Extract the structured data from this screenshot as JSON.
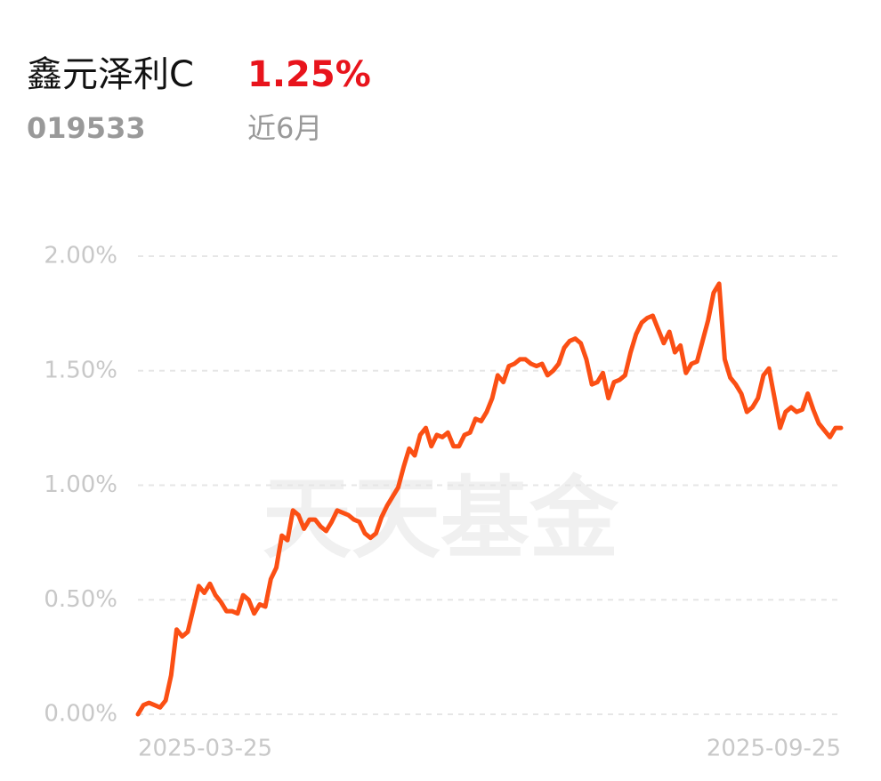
{
  "header": {
    "name": "鑫元泽利C",
    "return": "1.25%",
    "code": "019533",
    "period": "近6月"
  },
  "chart_data": {
    "type": "line",
    "watermark": "天天基金",
    "color": "#fb4f14",
    "grid": true,
    "ylim": [
      0,
      2
    ],
    "yticks": [
      {
        "value": 0,
        "label": "0.00%"
      },
      {
        "value": 0.5,
        "label": "0.50%"
      },
      {
        "value": 1,
        "label": "1.00%"
      },
      {
        "value": 1.5,
        "label": "1.50%"
      },
      {
        "value": 2,
        "label": "2.00%"
      }
    ],
    "categories": [
      "2025-03-25",
      null,
      null,
      null,
      null,
      null,
      null,
      null,
      null,
      null,
      null,
      null,
      null,
      null,
      null,
      null,
      null,
      null,
      null,
      null,
      null,
      null,
      null,
      null,
      null,
      null,
      null,
      null,
      null,
      null,
      null,
      null,
      null,
      null,
      null,
      null,
      null,
      null,
      null,
      null,
      null,
      null,
      null,
      null,
      null,
      null,
      null,
      null,
      null,
      null,
      null,
      null,
      null,
      null,
      null,
      null,
      null,
      null,
      null,
      null,
      null,
      null,
      null,
      null,
      null,
      null,
      null,
      null,
      null,
      null,
      null,
      null,
      null,
      null,
      null,
      null,
      null,
      null,
      null,
      null,
      null,
      null,
      null,
      null,
      null,
      null,
      null,
      null,
      null,
      null,
      null,
      null,
      null,
      null,
      null,
      null,
      null,
      null,
      null,
      null,
      null,
      null,
      null,
      null,
      null,
      null,
      null,
      null,
      null,
      null,
      null,
      null,
      null,
      null,
      null,
      null,
      null,
      null,
      null,
      null,
      null,
      null,
      null,
      null,
      null,
      null,
      null,
      "2025-09-25"
    ],
    "values": [
      0,
      0.04,
      0.05,
      0.04,
      0.03,
      0.06,
      0.17,
      0.37,
      0.34,
      0.36,
      0.46,
      0.56,
      0.53,
      0.57,
      0.52,
      0.49,
      0.45,
      0.45,
      0.44,
      0.52,
      0.5,
      0.44,
      0.48,
      0.47,
      0.59,
      0.64,
      0.78,
      0.76,
      0.89,
      0.87,
      0.81,
      0.85,
      0.85,
      0.82,
      0.8,
      0.84,
      0.89,
      0.88,
      0.87,
      0.85,
      0.84,
      0.79,
      0.77,
      0.79,
      0.86,
      0.91,
      0.95,
      0.99,
      1.08,
      1.16,
      1.13,
      1.22,
      1.25,
      1.17,
      1.22,
      1.21,
      1.23,
      1.17,
      1.17,
      1.22,
      1.23,
      1.29,
      1.28,
      1.32,
      1.38,
      1.48,
      1.45,
      1.52,
      1.53,
      1.55,
      1.55,
      1.53,
      1.52,
      1.53,
      1.48,
      1.5,
      1.53,
      1.6,
      1.63,
      1.64,
      1.62,
      1.55,
      1.44,
      1.45,
      1.49,
      1.38,
      1.45,
      1.46,
      1.48,
      1.58,
      1.66,
      1.71,
      1.73,
      1.74,
      1.68,
      1.62,
      1.67,
      1.58,
      1.61,
      1.49,
      1.53,
      1.54,
      1.63,
      1.72,
      1.84,
      1.88,
      1.55,
      1.47,
      1.44,
      1.4,
      1.32,
      1.34,
      1.38,
      1.48,
      1.51,
      1.38,
      1.25,
      1.32,
      1.34,
      1.32,
      1.33,
      1.4,
      1.33,
      1.27,
      1.24,
      1.21,
      1.25,
      1.25
    ]
  }
}
